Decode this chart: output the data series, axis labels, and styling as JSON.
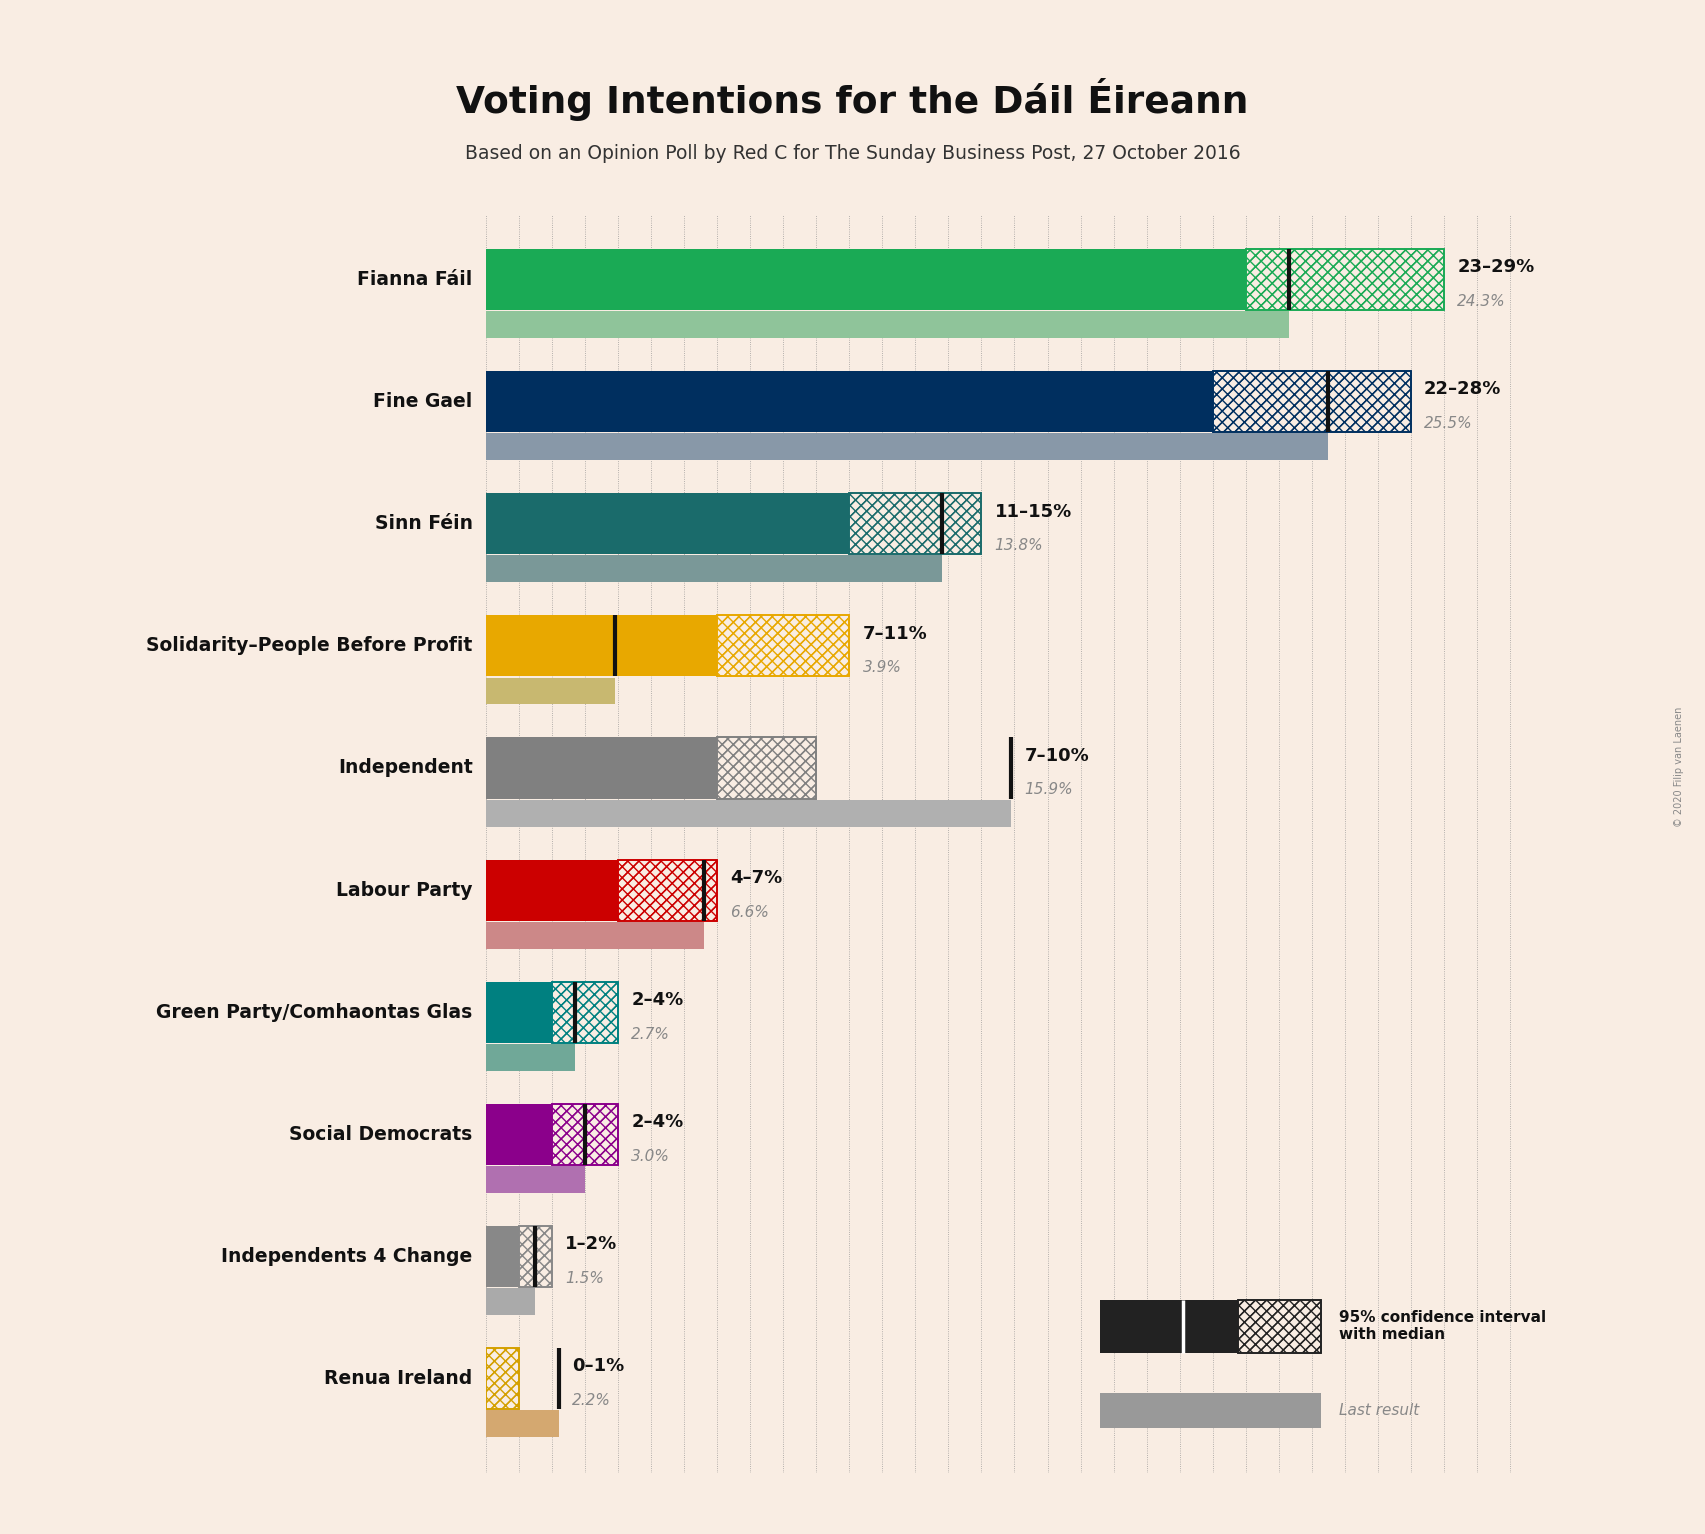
{
  "title": "Voting Intentions for the Dáil Éireann",
  "subtitle": "Based on an Opinion Poll by Red C for The Sunday Business Post, 27 October 2016",
  "background_color": "#f9ede3",
  "parties": [
    {
      "name": "Fianna Fáil",
      "ci_low": 23,
      "ci_high": 29,
      "median": 24.3,
      "last_result": 24.3,
      "color": "#1aaa55",
      "last_color": "#8fc49a",
      "label": "23–29%",
      "label2": "24.3%"
    },
    {
      "name": "Fine Gael",
      "ci_low": 22,
      "ci_high": 28,
      "median": 25.5,
      "last_result": 25.5,
      "color": "#002f5f",
      "last_color": "#8898a8",
      "label": "22–28%",
      "label2": "25.5%"
    },
    {
      "name": "Sinn Féin",
      "ci_low": 11,
      "ci_high": 15,
      "median": 13.8,
      "last_result": 13.8,
      "color": "#1a6b6b",
      "last_color": "#7a9898",
      "label": "11–15%",
      "label2": "13.8%"
    },
    {
      "name": "Solidarity–People Before Profit",
      "ci_low": 7,
      "ci_high": 11,
      "median": 3.9,
      "last_result": 3.9,
      "color": "#e8a800",
      "last_color": "#c8b870",
      "label": "7–11%",
      "label2": "3.9%"
    },
    {
      "name": "Independent",
      "ci_low": 7,
      "ci_high": 10,
      "median": 15.9,
      "last_result": 15.9,
      "color": "#808080",
      "last_color": "#b0b0b0",
      "label": "7–10%",
      "label2": "15.9%"
    },
    {
      "name": "Labour Party",
      "ci_low": 4,
      "ci_high": 7,
      "median": 6.6,
      "last_result": 6.6,
      "color": "#cc0000",
      "last_color": "#cc8888",
      "label": "4–7%",
      "label2": "6.6%"
    },
    {
      "name": "Green Party/Comhaontas Glas",
      "ci_low": 2,
      "ci_high": 4,
      "median": 2.7,
      "last_result": 2.7,
      "color": "#008080",
      "last_color": "#70a898",
      "label": "2–4%",
      "label2": "2.7%"
    },
    {
      "name": "Social Democrats",
      "ci_low": 2,
      "ci_high": 4,
      "median": 3.0,
      "last_result": 3.0,
      "color": "#8b008b",
      "last_color": "#b070b0",
      "label": "2–4%",
      "label2": "3.0%"
    },
    {
      "name": "Independents 4 Change",
      "ci_low": 1,
      "ci_high": 2,
      "median": 1.5,
      "last_result": 1.5,
      "color": "#888888",
      "last_color": "#aaaaaa",
      "label": "1–2%",
      "label2": "1.5%"
    },
    {
      "name": "Renua Ireland",
      "ci_low": 0,
      "ci_high": 1,
      "median": 2.2,
      "last_result": 2.2,
      "color": "#d4a000",
      "last_color": "#d4a870",
      "label": "0–1%",
      "label2": "2.2%"
    }
  ],
  "xmax": 32,
  "grid_interval": 1,
  "legend_text1": "95% confidence interval\nwith median",
  "legend_text2": "Last result",
  "copyright": "© 2020 Filip van Laenen"
}
